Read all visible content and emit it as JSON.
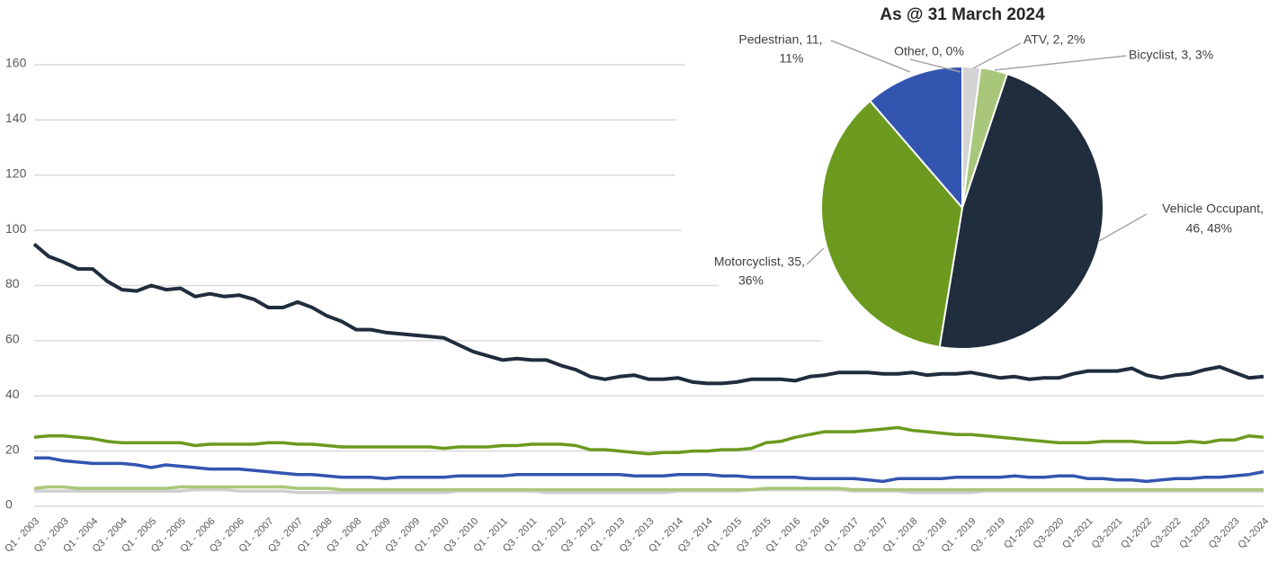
{
  "chart_data": [
    {
      "type": "line",
      "categories": [
        "Q1 - 2003",
        null,
        "Q3 - 2003",
        null,
        "Q1 - 2004",
        null,
        "Q3 - 2004",
        null,
        "Q1 - 2005",
        null,
        "Q3 - 2005",
        null,
        "Q1 - 2006",
        null,
        "Q3 - 2006",
        null,
        "Q1 - 2007",
        null,
        "Q3 - 2007",
        null,
        "Q1 - 2008",
        null,
        "Q3 - 2008",
        null,
        "Q1 - 2009",
        null,
        "Q3 - 2009",
        null,
        "Q1 - 2010",
        null,
        "Q3 - 2010",
        null,
        "Q1 - 2011",
        null,
        "Q3 - 2011",
        null,
        "Q1 - 2012",
        null,
        "Q3 - 2012",
        null,
        "Q1 - 2013",
        null,
        "Q3 - 2013",
        null,
        "Q1 - 2014",
        null,
        "Q3 - 2014",
        null,
        "Q1 - 2015",
        null,
        "Q3 - 2015",
        null,
        "Q1 - 2016",
        null,
        "Q3 - 2016",
        null,
        "Q1 - 2017",
        null,
        "Q3 - 2017",
        null,
        "Q1 - 2018",
        null,
        "Q3 - 2018",
        null,
        "Q1 - 2019",
        null,
        "Q3 - 2019",
        null,
        "Q1-2020",
        null,
        "Q3-2020",
        null,
        "Q1-2021",
        null,
        "Q3-2021",
        null,
        "Q1-2022",
        null,
        "Q3-2022",
        null,
        "Q1-2023",
        null,
        "Q3-2023",
        null,
        "Q1-2024"
      ],
      "series": [
        {
          "color": "#1f2d3d",
          "values": [
            95,
            90.5,
            88.5,
            86,
            86,
            81.5,
            78.5,
            78,
            80,
            78.5,
            79,
            76,
            77,
            76,
            76.5,
            75,
            72,
            72,
            74,
            72,
            69,
            67,
            64,
            64,
            63,
            62.5,
            62,
            61.5,
            61,
            58.5,
            56,
            54.5,
            53,
            53.5,
            53,
            53,
            51,
            49.5,
            47,
            46,
            47,
            47.5,
            46,
            46,
            46.5,
            45,
            44.5,
            44.5,
            45,
            46,
            46,
            46,
            45.5,
            47,
            47.5,
            48.5,
            48.5,
            48.5,
            48,
            48,
            48.5,
            47.5,
            48,
            48,
            48.5,
            47.5,
            46.5,
            47,
            46,
            46.5,
            46.5,
            48,
            49,
            49,
            49,
            50,
            47.5,
            46.5,
            47.5,
            48,
            49.5,
            50.5,
            48.5,
            46.5,
            47
          ]
        },
        {
          "color": "#6b9a1f",
          "values": [
            25,
            25.5,
            25.5,
            25,
            24.5,
            23.5,
            23,
            23,
            23,
            23,
            23,
            22,
            22.5,
            22.5,
            22.5,
            22.5,
            23,
            23,
            22.5,
            22.5,
            22,
            21.5,
            21.5,
            21.5,
            21.5,
            21.5,
            21.5,
            21.5,
            21,
            21.5,
            21.5,
            21.5,
            22,
            22,
            22.5,
            22.5,
            22.5,
            22,
            20.5,
            20.5,
            20,
            19.5,
            19,
            19.5,
            19.5,
            20,
            20,
            20.5,
            20.5,
            21,
            23,
            23.5,
            25,
            26,
            27,
            27,
            27,
            27.5,
            28,
            28.5,
            27.5,
            27,
            26.5,
            26,
            26,
            25.5,
            25,
            24.5,
            24,
            23.5,
            23,
            23,
            23,
            23.5,
            23.5,
            23.5,
            23,
            23,
            23,
            23.5,
            23,
            24,
            24,
            25.5,
            25
          ]
        },
        {
          "color": "#3355b0",
          "values": [
            17.5,
            17.5,
            16.5,
            16,
            15.5,
            15.5,
            15.5,
            15,
            14,
            15,
            14.5,
            14,
            13.5,
            13.5,
            13.5,
            13,
            12.5,
            12,
            11.5,
            11.5,
            11,
            10.5,
            10.5,
            10.5,
            10,
            10.5,
            10.5,
            10.5,
            10.5,
            11,
            11,
            11,
            11,
            11.5,
            11.5,
            11.5,
            11.5,
            11.5,
            11.5,
            11.5,
            11.5,
            11,
            11,
            11,
            11.5,
            11.5,
            11.5,
            11,
            11,
            10.5,
            10.5,
            10.5,
            10.5,
            10,
            10,
            10,
            10,
            9.5,
            9,
            10,
            10,
            10,
            10,
            10.5,
            10.5,
            10.5,
            10.5,
            11,
            10.5,
            10.5,
            11,
            11,
            10,
            10,
            9.5,
            9.5,
            9,
            9.5,
            10,
            10,
            10.5,
            10.5,
            11,
            11.5,
            12.5
          ]
        },
        {
          "color": "#a9c77a",
          "values": [
            6.5,
            7,
            7,
            6.5,
            6.5,
            6.5,
            6.5,
            6.5,
            6.5,
            6.5,
            7,
            7,
            7,
            7,
            7,
            7,
            7,
            7,
            6.5,
            6.5,
            6.5,
            6,
            6,
            6,
            6,
            6,
            6,
            6,
            6,
            6,
            6,
            6,
            6,
            6,
            6,
            6,
            6,
            6,
            6,
            6,
            6,
            6,
            6,
            6,
            6,
            6,
            6,
            6,
            6,
            6,
            6.5,
            6.5,
            6.5,
            6.5,
            6.5,
            6.5,
            6,
            6,
            6,
            6,
            6,
            6,
            6,
            6,
            6,
            6,
            6,
            6,
            6,
            6,
            6,
            6,
            6,
            6,
            6,
            6,
            6,
            6,
            6,
            6,
            6,
            6,
            6,
            6,
            6
          ]
        },
        {
          "color": "#cfcfcf",
          "values": [
            5.5,
            5.5,
            5.5,
            5.5,
            5.5,
            5.5,
            5.5,
            5.5,
            5.5,
            5.5,
            5.5,
            6,
            6,
            6,
            5.5,
            5.5,
            5.5,
            5.5,
            5,
            5,
            5,
            5,
            5,
            5,
            5,
            5,
            5,
            5,
            5,
            5.5,
            5.5,
            5.5,
            5.5,
            5.5,
            5.5,
            5,
            5,
            5,
            5,
            5,
            5,
            5,
            5,
            5,
            5.5,
            5.5,
            5.5,
            5.5,
            5.5,
            6,
            6,
            6,
            6,
            6,
            6,
            6,
            5.5,
            5.5,
            5.5,
            5.5,
            5,
            5,
            5,
            5,
            5,
            5.5,
            5.5,
            5.5,
            5.5,
            5.5,
            5.5,
            5.5,
            5.5,
            5.5,
            5.5,
            5.5,
            5.5,
            5.5,
            5.5,
            5.5,
            5.5,
            5.5,
            5.5,
            5.5,
            5.5
          ]
        }
      ],
      "ylim": [
        0,
        160
      ],
      "yticks": [
        0,
        20,
        40,
        60,
        80,
        100,
        120,
        140,
        160
      ],
      "grid": true
    },
    {
      "type": "pie",
      "title": "As @ 31 March 2024",
      "categories": [
        "Other",
        "ATV",
        "Bicyclist",
        "Vehicle Occupant",
        "Motorcyclist",
        "Pedestrian"
      ],
      "values": [
        0,
        2,
        3,
        46,
        35,
        11
      ],
      "value_labels": [
        [
          "Other, 0, 0%"
        ],
        [
          "ATV, 2, 2%"
        ],
        [
          "Bicyclist, 3, 3%"
        ],
        [
          "Vehicle Occupant,",
          "46, 48%"
        ],
        [
          "Motorcyclist, 35,",
          "36%"
        ],
        [
          "Pedestrian, 11,",
          "11%"
        ]
      ],
      "colors": [
        "#bfbfbf",
        "#d4d4d4",
        "#a9c77a",
        "#1f2d3d",
        "#6b9a1f",
        "#3355b0"
      ]
    }
  ]
}
